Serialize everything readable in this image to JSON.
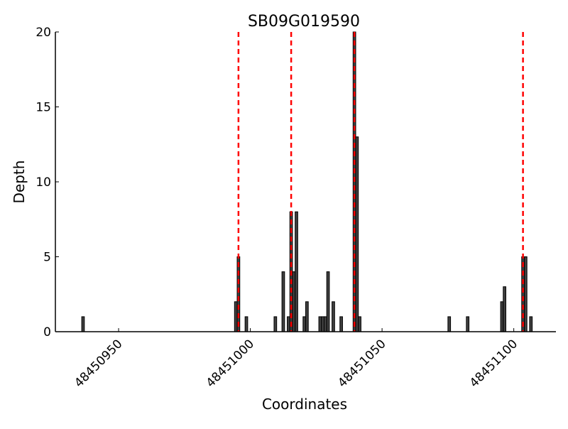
{
  "chart_data": {
    "type": "bar",
    "title": "SB09G019590",
    "xlabel": "Coordinates",
    "ylabel": "Depth",
    "xlim": [
      48450926,
      48451116
    ],
    "ylim": [
      0,
      20
    ],
    "xticks": [
      48450950,
      48451000,
      48451050,
      48451100
    ],
    "yticks": [
      0,
      5,
      10,
      15,
      20
    ],
    "grid": false,
    "bar_color": "#404040",
    "bars": [
      {
        "x": 48450936,
        "depth": 1
      },
      {
        "x": 48450994,
        "depth": 2
      },
      {
        "x": 48450995,
        "depth": 5
      },
      {
        "x": 48450998,
        "depth": 1
      },
      {
        "x": 48451009,
        "depth": 1
      },
      {
        "x": 48451012,
        "depth": 4
      },
      {
        "x": 48451014,
        "depth": 1
      },
      {
        "x": 48451015,
        "depth": 8
      },
      {
        "x": 48451016,
        "depth": 4
      },
      {
        "x": 48451017,
        "depth": 8
      },
      {
        "x": 48451020,
        "depth": 1
      },
      {
        "x": 48451021,
        "depth": 2
      },
      {
        "x": 48451026,
        "depth": 1
      },
      {
        "x": 48451027,
        "depth": 1
      },
      {
        "x": 48451028,
        "depth": 1
      },
      {
        "x": 48451029,
        "depth": 4
      },
      {
        "x": 48451031,
        "depth": 2
      },
      {
        "x": 48451034,
        "depth": 1
      },
      {
        "x": 48451039,
        "depth": 20
      },
      {
        "x": 48451040,
        "depth": 13
      },
      {
        "x": 48451041,
        "depth": 1
      },
      {
        "x": 48451075,
        "depth": 1
      },
      {
        "x": 48451082,
        "depth": 1
      },
      {
        "x": 48451095,
        "depth": 2
      },
      {
        "x": 48451096,
        "depth": 3
      },
      {
        "x": 48451103,
        "depth": 5
      },
      {
        "x": 48451104,
        "depth": 5
      },
      {
        "x": 48451106,
        "depth": 1
      }
    ],
    "vlines": {
      "color": "#ff0000",
      "style": "dashed",
      "x": [
        48450995.5,
        48451015.5,
        48451039.5,
        48451103.5
      ]
    }
  }
}
